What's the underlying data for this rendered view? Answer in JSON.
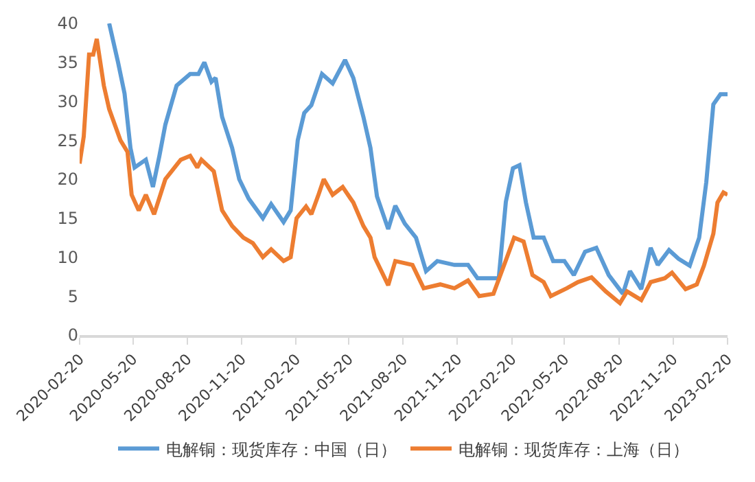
{
  "chart_data": {
    "type": "line",
    "xlim": [
      "2020-02-20",
      "2023-02-20"
    ],
    "xticks": [
      "2020-02-20",
      "2020-05-20",
      "2020-08-20",
      "2020-11-20",
      "2021-02-20",
      "2021-05-20",
      "2021-08-20",
      "2021-11-20",
      "2022-02-20",
      "2022-05-20",
      "2022-08-20",
      "2022-11-20",
      "2023-02-20"
    ],
    "ylim": [
      0,
      40
    ],
    "yticks": [
      0,
      5,
      10,
      15,
      20,
      25,
      30,
      35,
      40
    ],
    "legend": "bottom",
    "marker": "none",
    "line_style": "solid",
    "series": [
      {
        "name": "电解铜：现货库存：中国（日）",
        "color": "#5b9bd5",
        "x": [
          "2020-04-10",
          "2020-04-25",
          "2020-05-06",
          "2020-05-16",
          "2020-05-23",
          "2020-06-11",
          "2020-06-23",
          "2020-07-04",
          "2020-07-14",
          "2020-08-02",
          "2020-08-25",
          "2020-09-08",
          "2020-09-18",
          "2020-09-30",
          "2020-10-07",
          "2020-10-18",
          "2020-11-04",
          "2020-11-16",
          "2020-12-02",
          "2020-12-26",
          "2021-01-09",
          "2021-01-30",
          "2021-02-11",
          "2021-02-23",
          "2021-03-06",
          "2021-03-18",
          "2021-04-05",
          "2021-04-23",
          "2021-05-14",
          "2021-05-28",
          "2021-06-14",
          "2021-06-26",
          "2021-07-07",
          "2021-07-26",
          "2021-08-07",
          "2021-08-23",
          "2021-09-11",
          "2021-09-28",
          "2021-10-17",
          "2021-11-15",
          "2021-12-08",
          "2021-12-24",
          "2022-01-13",
          "2022-01-29",
          "2022-02-10",
          "2022-02-22",
          "2022-03-05",
          "2022-03-16",
          "2022-03-29",
          "2022-04-15",
          "2022-05-01",
          "2022-05-20",
          "2022-06-05",
          "2022-06-24",
          "2022-07-13",
          "2022-08-03",
          "2022-08-27",
          "2022-09-08",
          "2022-09-27",
          "2022-10-13",
          "2022-10-25",
          "2022-11-13",
          "2022-11-29",
          "2022-12-18",
          "2023-01-03",
          "2023-01-15",
          "2023-01-27",
          "2023-02-08",
          "2023-02-20"
        ],
        "values": [
          40,
          35,
          31,
          24,
          21.5,
          22.5,
          19,
          23,
          27,
          32,
          33.5,
          33.5,
          35,
          32.5,
          33,
          28,
          24,
          20,
          17.5,
          15,
          16.8,
          14.5,
          16,
          25,
          28.5,
          29.5,
          33.5,
          32.3,
          35.3,
          33,
          28,
          24,
          17.8,
          13.6,
          16.6,
          14.3,
          12.5,
          8.2,
          9.5,
          9,
          9,
          7.3,
          7.3,
          7.3,
          17.1,
          21.4,
          21.8,
          17,
          12.5,
          12.5,
          9.5,
          9.5,
          7.7,
          10.7,
          11.2,
          7.7,
          5.3,
          8.2,
          5.9,
          11.2,
          9,
          10.9,
          9.8,
          8.9,
          12.5,
          19.6,
          29.6,
          30.9,
          30.9
        ]
      },
      {
        "name": "电解铜：现货库存：上海（日）",
        "color": "#ed7d31",
        "x": [
          "2020-02-20",
          "2020-02-27",
          "2020-03-07",
          "2020-03-14",
          "2020-03-20",
          "2020-04-01",
          "2020-04-10",
          "2020-04-29",
          "2020-05-11",
          "2020-05-18",
          "2020-05-30",
          "2020-06-11",
          "2020-06-25",
          "2020-07-14",
          "2020-08-09",
          "2020-08-25",
          "2020-09-06",
          "2020-09-13",
          "2020-10-04",
          "2020-10-18",
          "2020-11-04",
          "2020-11-23",
          "2020-12-09",
          "2020-12-26",
          "2021-01-09",
          "2021-01-30",
          "2021-02-11",
          "2021-02-21",
          "2021-03-09",
          "2021-03-18",
          "2021-03-30",
          "2021-04-08",
          "2021-04-23",
          "2021-05-10",
          "2021-05-28",
          "2021-06-14",
          "2021-06-26",
          "2021-07-03",
          "2021-07-26",
          "2021-08-07",
          "2021-09-05",
          "2021-09-24",
          "2021-10-22",
          "2021-11-15",
          "2021-12-08",
          "2021-12-27",
          "2022-01-20",
          "2022-02-12",
          "2022-02-24",
          "2022-03-12",
          "2022-03-27",
          "2022-04-15",
          "2022-04-27",
          "2022-05-24",
          "2022-06-12",
          "2022-07-05",
          "2022-07-29",
          "2022-08-22",
          "2022-09-03",
          "2022-09-27",
          "2022-10-13",
          "2022-11-06",
          "2022-11-18",
          "2022-12-11",
          "2022-12-30",
          "2023-01-11",
          "2023-01-27",
          "2023-02-03",
          "2023-02-13",
          "2023-02-20"
        ],
        "values": [
          22,
          25.5,
          36,
          36,
          38,
          32,
          29,
          25,
          23.5,
          18,
          16,
          18,
          15.5,
          20,
          22.5,
          23,
          21.5,
          22.5,
          21,
          16,
          14,
          12.5,
          11.8,
          10,
          11,
          9.5,
          10,
          15,
          16.5,
          15.5,
          18,
          20,
          18,
          19,
          17,
          14,
          12.5,
          10,
          6.4,
          9.5,
          9,
          6,
          6.5,
          6,
          7,
          5,
          5.3,
          10,
          12.5,
          12,
          7.7,
          6.8,
          5,
          6,
          6.8,
          7.4,
          5.6,
          4.1,
          5.6,
          4.5,
          6.8,
          7.3,
          8,
          5.9,
          6.5,
          8.9,
          13,
          17,
          18.3,
          18
        ]
      }
    ]
  }
}
